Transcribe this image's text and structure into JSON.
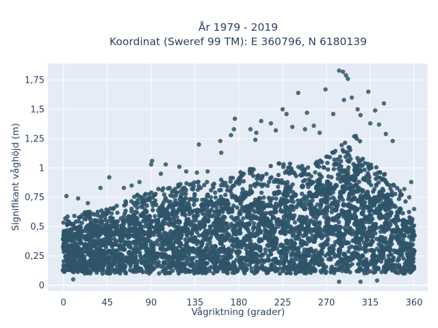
{
  "chart_data": {
    "type": "scatter",
    "title_line1": "År 1979 - 2019",
    "title_line2": "Koordinat (Sweref 99 TM): E 360796, N 6180139",
    "xlabel": "Vågriktning (grader)",
    "ylabel": "Signifikant våghöjd (m)",
    "xlim": [
      -16,
      374
    ],
    "ylim": [
      -0.05,
      1.89
    ],
    "x_ticks": [
      0,
      45,
      90,
      135,
      180,
      225,
      270,
      315,
      360
    ],
    "x_tick_labels": [
      "0",
      "45",
      "90",
      "135",
      "180",
      "225",
      "270",
      "315",
      "360"
    ],
    "y_ticks": [
      0,
      0.25,
      0.5,
      0.75,
      1,
      1.25,
      1.5,
      1.75
    ],
    "y_tick_labels": [
      "0",
      "0,25",
      "0,5",
      "0,75",
      "1",
      "1,25",
      "1,5",
      "1,75"
    ],
    "grid": true,
    "marker_color": "#2f5469",
    "background_color": "#e5ecf6",
    "envelope": {
      "direction": [
        0,
        15,
        30,
        45,
        60,
        75,
        90,
        105,
        120,
        135,
        150,
        165,
        180,
        195,
        210,
        225,
        240,
        255,
        270,
        285,
        300,
        315,
        330,
        345,
        360
      ],
      "hs_upper": [
        0.58,
        0.62,
        0.63,
        0.65,
        0.7,
        0.77,
        0.8,
        0.85,
        0.87,
        0.88,
        0.9,
        0.92,
        0.96,
        1.0,
        1.02,
        1.05,
        1.06,
        1.04,
        1.1,
        1.2,
        1.3,
        1.08,
        0.95,
        0.83,
        0.55
      ],
      "hs_lower": [
        0.11,
        0.1,
        0.1,
        0.1,
        0.1,
        0.1,
        0.1,
        0.1,
        0.1,
        0.1,
        0.1,
        0.1,
        0.1,
        0.1,
        0.1,
        0.1,
        0.1,
        0.1,
        0.1,
        0.1,
        0.1,
        0.1,
        0.1,
        0.1,
        0.1
      ]
    },
    "outliers": [
      {
        "x": 283,
        "y": 1.83
      },
      {
        "x": 287,
        "y": 1.82
      },
      {
        "x": 290,
        "y": 1.79
      },
      {
        "x": 292,
        "y": 1.76
      },
      {
        "x": 269,
        "y": 1.67
      },
      {
        "x": 313,
        "y": 1.65
      },
      {
        "x": 241,
        "y": 1.64
      },
      {
        "x": 288,
        "y": 1.58
      },
      {
        "x": 296,
        "y": 1.6
      },
      {
        "x": 329,
        "y": 1.55
      },
      {
        "x": 302,
        "y": 1.5
      },
      {
        "x": 320,
        "y": 1.49
      },
      {
        "x": 229,
        "y": 1.46
      },
      {
        "x": 250,
        "y": 1.47
      },
      {
        "x": 277,
        "y": 1.46
      },
      {
        "x": 305,
        "y": 1.45
      },
      {
        "x": 176,
        "y": 1.42
      },
      {
        "x": 203,
        "y": 1.4
      },
      {
        "x": 213,
        "y": 1.38
      },
      {
        "x": 225,
        "y": 1.5
      },
      {
        "x": 192,
        "y": 1.33
      },
      {
        "x": 198,
        "y": 1.3
      },
      {
        "x": 235,
        "y": 1.35
      },
      {
        "x": 257,
        "y": 1.36
      },
      {
        "x": 175,
        "y": 1.33
      },
      {
        "x": 172,
        "y": 1.28
      },
      {
        "x": 161,
        "y": 1.23
      },
      {
        "x": 139,
        "y": 1.2
      },
      {
        "x": 162,
        "y": 1.13
      },
      {
        "x": 197,
        "y": 1.24
      },
      {
        "x": 218,
        "y": 1.32
      },
      {
        "x": 248,
        "y": 1.33
      },
      {
        "x": 263,
        "y": 1.3
      },
      {
        "x": 315,
        "y": 1.38
      },
      {
        "x": 324,
        "y": 1.37
      },
      {
        "x": 331,
        "y": 1.29
      },
      {
        "x": 338,
        "y": 1.23
      },
      {
        "x": 91,
        "y": 1.06
      },
      {
        "x": 90,
        "y": 1.03
      },
      {
        "x": 105,
        "y": 1.03
      },
      {
        "x": 119,
        "y": 1.01
      },
      {
        "x": 137,
        "y": 0.96
      },
      {
        "x": 148,
        "y": 0.97
      },
      {
        "x": 357,
        "y": 0.88
      },
      {
        "x": 360,
        "y": 0.65
      },
      {
        "x": 355,
        "y": 0.75
      },
      {
        "x": 350,
        "y": 0.82
      },
      {
        "x": 47,
        "y": 0.92
      },
      {
        "x": 38,
        "y": 0.83
      },
      {
        "x": 62,
        "y": 0.83
      },
      {
        "x": 70,
        "y": 0.85
      },
      {
        "x": 3,
        "y": 0.76
      },
      {
        "x": 15,
        "y": 0.74
      },
      {
        "x": 25,
        "y": 0.7
      },
      {
        "x": 78,
        "y": 0.88
      },
      {
        "x": 100,
        "y": 0.95
      },
      {
        "x": 126,
        "y": 0.97
      },
      {
        "x": 283,
        "y": 0.03
      },
      {
        "x": 305,
        "y": 0.03
      },
      {
        "x": 322,
        "y": 0.04
      },
      {
        "x": 10,
        "y": 0.05
      }
    ]
  }
}
